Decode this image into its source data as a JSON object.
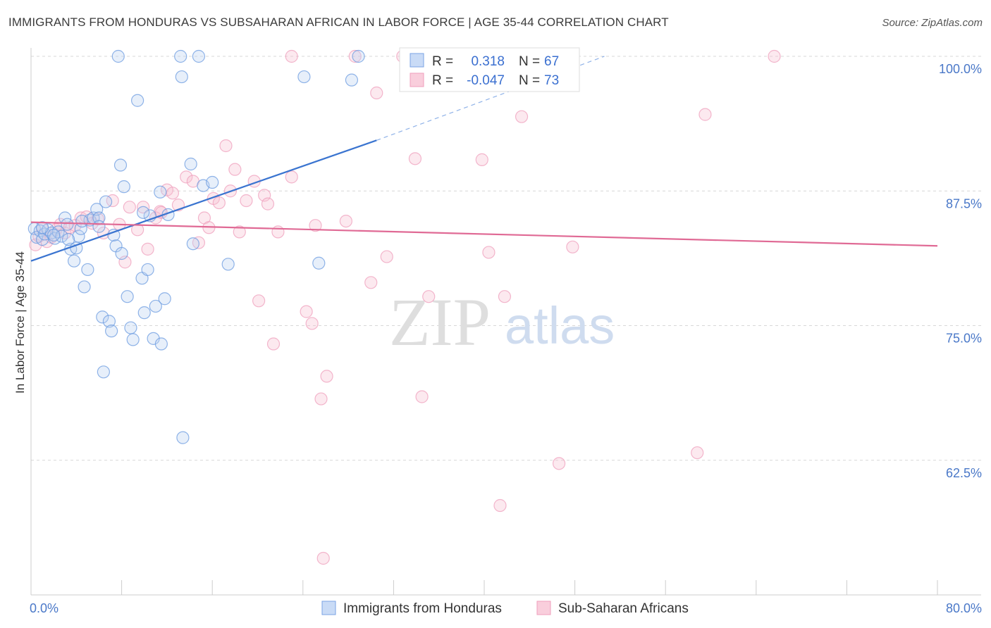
{
  "header": {
    "title": "IMMIGRANTS FROM HONDURAS VS SUBSAHARAN AFRICAN IN LABOR FORCE | AGE 35-44 CORRELATION CHART",
    "source": "Source: ZipAtlas.com"
  },
  "watermark": {
    "zip": "ZIP",
    "atlas": "atlas"
  },
  "legend": {
    "r_label": "R =",
    "n_label": "N =",
    "series": [
      {
        "r": "0.318",
        "n": "67"
      },
      {
        "r": "-0.047",
        "n": "73"
      }
    ]
  },
  "bottom_legend": [
    "Immigrants from Honduras",
    "Sub-Saharan Africans"
  ],
  "chart_data": {
    "type": "scatter",
    "title": "IMMIGRANTS FROM HONDURAS VS SUBSAHARAN AFRICAN IN LABOR FORCE | AGE 35-44 CORRELATION CHART",
    "xlabel": "",
    "ylabel": "In Labor Force | Age 35-44",
    "xlim": [
      0,
      80
    ],
    "ylim": [
      51,
      101.5
    ],
    "x_tick_labels": [
      "0.0%",
      "80.0%"
    ],
    "y_ticks": [
      62.5,
      75.0,
      87.5,
      100.0
    ],
    "y_tick_labels": [
      "62.5%",
      "75.0%",
      "87.5%",
      "100.0%"
    ],
    "grid": true,
    "legend_position": "top-center",
    "colors": {
      "honduras": "#6b9be0",
      "honduras_line": "#3a74d0",
      "africa": "#f0a6bf",
      "africa_line": "#e06a95"
    },
    "series": [
      {
        "name": "Immigrants from Honduras",
        "color": "#6b9be0",
        "trend": {
          "x": [
            0,
            30.5
          ],
          "y": [
            81.0,
            92.2
          ],
          "dashed_to": [
            50.6,
            100.0
          ]
        },
        "points": [
          [
            0.3,
            84.0
          ],
          [
            0.5,
            83.2
          ],
          [
            0.8,
            83.8
          ],
          [
            1.0,
            83.0
          ],
          [
            1.2,
            83.5
          ],
          [
            1.5,
            83.9
          ],
          [
            1.8,
            83.6
          ],
          [
            2.1,
            83.1
          ],
          [
            2.4,
            83.7
          ],
          [
            2.7,
            83.3
          ],
          [
            3.0,
            85.0
          ],
          [
            3.2,
            84.4
          ],
          [
            3.5,
            82.1
          ],
          [
            3.8,
            81.0
          ],
          [
            4.0,
            82.2
          ],
          [
            4.2,
            83.3
          ],
          [
            4.4,
            84.0
          ],
          [
            4.7,
            78.6
          ],
          [
            5.0,
            80.2
          ],
          [
            5.2,
            84.8
          ],
          [
            5.5,
            85.0
          ],
          [
            5.8,
            85.8
          ],
          [
            6.0,
            85.0
          ],
          [
            6.3,
            75.8
          ],
          [
            6.6,
            86.5
          ],
          [
            6.9,
            75.4
          ],
          [
            7.1,
            74.5
          ],
          [
            7.3,
            83.4
          ],
          [
            7.5,
            82.4
          ],
          [
            7.7,
            100.0
          ],
          [
            7.9,
            89.9
          ],
          [
            8.2,
            87.9
          ],
          [
            8.5,
            77.7
          ],
          [
            8.8,
            74.8
          ],
          [
            9.0,
            73.7
          ],
          [
            9.4,
            95.9
          ],
          [
            9.8,
            79.4
          ],
          [
            10.0,
            76.2
          ],
          [
            10.3,
            80.2
          ],
          [
            10.8,
            73.8
          ],
          [
            11.0,
            76.8
          ],
          [
            11.5,
            73.3
          ],
          [
            11.8,
            77.5
          ],
          [
            12.1,
            85.3
          ],
          [
            13.2,
            100.0
          ],
          [
            13.3,
            98.1
          ],
          [
            14.1,
            90.0
          ],
          [
            14.3,
            82.6
          ],
          [
            14.8,
            100.0
          ],
          [
            15.2,
            88.0
          ],
          [
            16.0,
            88.3
          ],
          [
            17.4,
            80.7
          ],
          [
            6.4,
            70.7
          ],
          [
            13.4,
            64.6
          ],
          [
            24.1,
            98.1
          ],
          [
            25.4,
            80.8
          ],
          [
            28.3,
            97.8
          ],
          [
            28.9,
            100.0
          ],
          [
            11.4,
            87.4
          ],
          [
            10.5,
            85.2
          ],
          [
            6.0,
            84.2
          ],
          [
            2.0,
            83.4
          ],
          [
            1.0,
            84.1
          ],
          [
            4.5,
            84.7
          ],
          [
            3.3,
            83.0
          ],
          [
            9.9,
            85.5
          ],
          [
            8.0,
            81.7
          ]
        ]
      },
      {
        "name": "Sub-Saharan Africans",
        "color": "#f0a6bf",
        "trend": {
          "x": [
            0,
            80
          ],
          "y": [
            84.6,
            82.4
          ]
        },
        "points": [
          [
            0.4,
            82.5
          ],
          [
            0.7,
            83.3
          ],
          [
            1.0,
            84.0
          ],
          [
            1.4,
            82.8
          ],
          [
            1.8,
            83.2
          ],
          [
            2.2,
            83.9
          ],
          [
            2.6,
            84.4
          ],
          [
            3.0,
            83.6
          ],
          [
            3.4,
            84.1
          ],
          [
            3.9,
            84.3
          ],
          [
            4.4,
            85.0
          ],
          [
            4.9,
            85.1
          ],
          [
            5.4,
            84.5
          ],
          [
            5.9,
            84.9
          ],
          [
            6.4,
            83.6
          ],
          [
            7.2,
            86.6
          ],
          [
            7.8,
            84.4
          ],
          [
            8.3,
            80.9
          ],
          [
            8.7,
            86.0
          ],
          [
            9.4,
            83.9
          ],
          [
            9.9,
            86.0
          ],
          [
            10.3,
            82.1
          ],
          [
            11.0,
            85.0
          ],
          [
            11.4,
            85.6
          ],
          [
            12.0,
            87.6
          ],
          [
            12.5,
            87.3
          ],
          [
            13.0,
            86.2
          ],
          [
            13.7,
            88.8
          ],
          [
            14.3,
            88.4
          ],
          [
            14.8,
            82.7
          ],
          [
            15.3,
            85.0
          ],
          [
            15.7,
            84.1
          ],
          [
            16.1,
            86.8
          ],
          [
            16.6,
            86.4
          ],
          [
            17.2,
            91.7
          ],
          [
            17.6,
            87.5
          ],
          [
            18.0,
            89.5
          ],
          [
            18.4,
            83.7
          ],
          [
            19.0,
            86.6
          ],
          [
            19.7,
            88.4
          ],
          [
            20.1,
            77.3
          ],
          [
            20.6,
            87.1
          ],
          [
            20.9,
            86.3
          ],
          [
            21.4,
            73.3
          ],
          [
            21.8,
            83.7
          ],
          [
            23.0,
            88.8
          ],
          [
            24.3,
            76.3
          ],
          [
            24.8,
            75.2
          ],
          [
            25.1,
            84.3
          ],
          [
            25.6,
            68.2
          ],
          [
            26.1,
            70.3
          ],
          [
            27.8,
            84.7
          ],
          [
            28.6,
            100.0
          ],
          [
            30.0,
            79.0
          ],
          [
            30.5,
            96.6
          ],
          [
            31.4,
            81.4
          ],
          [
            32.8,
            100.0
          ],
          [
            33.9,
            90.5
          ],
          [
            34.5,
            68.4
          ],
          [
            35.1,
            77.7
          ],
          [
            39.8,
            90.4
          ],
          [
            40.4,
            81.8
          ],
          [
            41.4,
            58.3
          ],
          [
            41.8,
            77.7
          ],
          [
            43.3,
            94.4
          ],
          [
            46.6,
            62.2
          ],
          [
            47.8,
            82.3
          ],
          [
            58.8,
            63.2
          ],
          [
            59.5,
            94.6
          ],
          [
            65.6,
            100.0
          ],
          [
            23.0,
            100.0
          ],
          [
            25.8,
            53.4
          ],
          [
            11.5,
            85.5
          ]
        ]
      }
    ]
  }
}
